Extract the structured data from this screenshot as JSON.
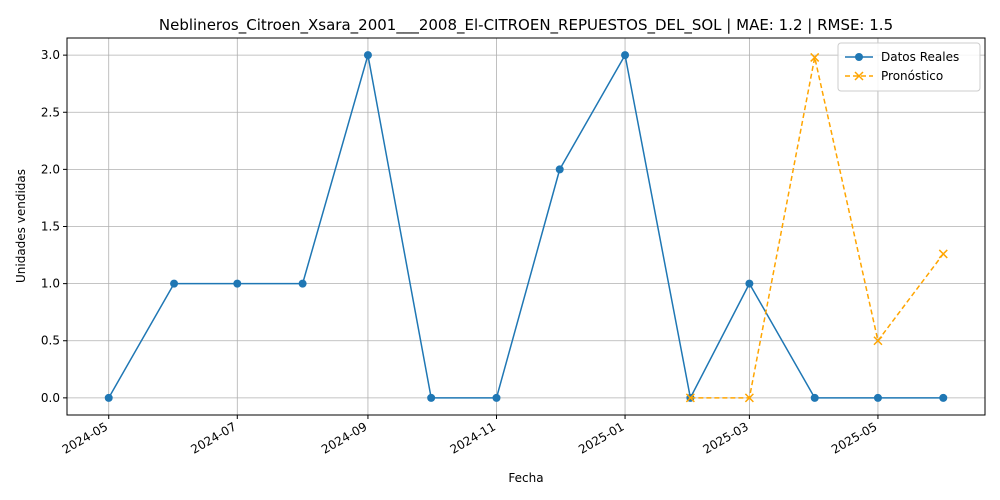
{
  "chart_data": {
    "type": "line",
    "title": "Neblineros_Citroen_Xsara_2001___2008_El-CITROEN_REPUESTOS_DEL_SOL | MAE: 1.2 | RMSE: 1.5",
    "xlabel": "Fecha",
    "ylabel": "Unidades vendidas",
    "ylim": [
      -0.15,
      3.15
    ],
    "y_ticks": [
      "0.0",
      "0.5",
      "1.0",
      "1.5",
      "2.0",
      "2.5",
      "3.0"
    ],
    "x_ticks": [
      "2024-05",
      "2024-07",
      "2024-09",
      "2024-11",
      "2025-01",
      "2025-03",
      "2025-05"
    ],
    "grid": true,
    "legend_position": "top-right",
    "series": [
      {
        "name": "Datos Reales",
        "color": "#1f77b4",
        "marker": "circle",
        "line_style": "solid",
        "x": [
          "2024-05-01",
          "2024-06-01",
          "2024-07-01",
          "2024-08-01",
          "2024-09-01",
          "2024-10-01",
          "2024-11-01",
          "2024-12-01",
          "2025-01-01",
          "2025-02-01",
          "2025-03-01",
          "2025-04-01",
          "2025-05-01",
          "2025-06-01"
        ],
        "values": [
          0,
          1,
          1,
          1,
          3,
          0,
          0,
          2,
          3,
          0,
          1,
          0,
          0,
          0
        ]
      },
      {
        "name": "Pronóstico",
        "color": "#ffa500",
        "marker": "x",
        "line_style": "dashed",
        "x": [
          "2025-02-01",
          "2025-03-01",
          "2025-04-01",
          "2025-05-01",
          "2025-06-01"
        ],
        "values": [
          0.0,
          0.0,
          2.98,
          0.5,
          1.26
        ]
      }
    ]
  }
}
